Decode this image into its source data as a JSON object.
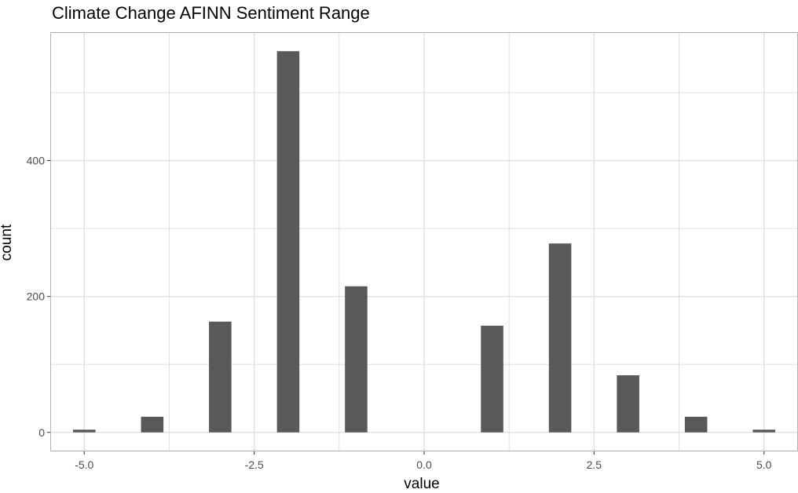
{
  "chart_data": {
    "type": "bar",
    "title": "Climate Change AFINN Sentiment Range",
    "xlabel": "value",
    "ylabel": "count",
    "x": [
      -5,
      -4,
      -3,
      -2,
      -1,
      1,
      2,
      3,
      4,
      5
    ],
    "values": [
      4,
      23,
      163,
      561,
      215,
      157,
      278,
      84,
      23,
      4
    ],
    "xlim": [
      -5.5,
      5.5
    ],
    "ylim": [
      -28,
      589
    ],
    "x_ticks": [
      -5.0,
      -2.5,
      0.0,
      2.5,
      5.0
    ],
    "x_tick_labels": [
      "-5.0",
      "-2.5",
      "0.0",
      "2.5",
      "5.0"
    ],
    "y_ticks": [
      0,
      200,
      400
    ],
    "y_tick_labels": [
      "0",
      "200",
      "400"
    ],
    "grid": true,
    "bar_color": "#595959",
    "grid_color": "#e0e0e0",
    "panel_border_color": "#b3b3b3"
  }
}
